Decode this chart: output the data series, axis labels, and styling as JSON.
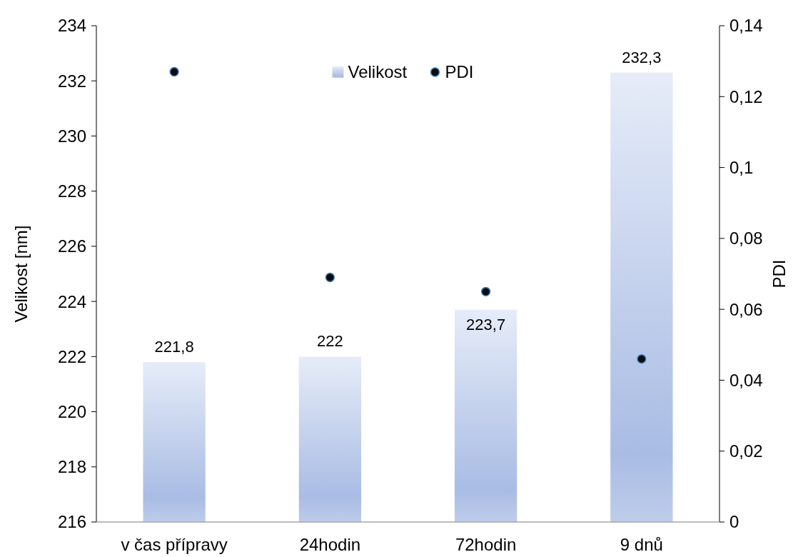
{
  "chart_data": {
    "type": "bar",
    "categories": [
      "v čas přípravy",
      "24hodin",
      "72hodin",
      "9 dnů"
    ],
    "series": [
      {
        "name": "Velikost",
        "color": "#a9bce4",
        "values": [
          221.8,
          222,
          223.7,
          232.3
        ],
        "value_labels": [
          "221,8",
          "222",
          "223,7",
          "232,3"
        ]
      },
      {
        "name": "PDI",
        "type": "scatter",
        "axis": "y2",
        "color": "#0d0d0d",
        "marker": "circle",
        "values": [
          0.127,
          0.069,
          0.065,
          0.046
        ]
      }
    ],
    "ylabel": "Velikost [nm]",
    "y2label": "PDI",
    "ylim": [
      216,
      234
    ],
    "yticks": [
      216,
      218,
      220,
      222,
      224,
      226,
      228,
      230,
      232,
      234
    ],
    "y2lim": [
      0,
      0.14
    ],
    "y2ticks": [
      0,
      {
        "value": 0.02,
        "label": "0,02"
      },
      {
        "value": 0.04,
        "label": "0,04"
      },
      {
        "value": 0.06,
        "label": "0,06"
      },
      {
        "value": 0.08,
        "label": "0,08"
      },
      {
        "value": 0.1,
        "label": "0,1"
      },
      {
        "value": 0.12,
        "label": "0,12"
      },
      {
        "value": 0.14,
        "label": "0,14"
      }
    ],
    "legend": "top",
    "grid": false
  }
}
